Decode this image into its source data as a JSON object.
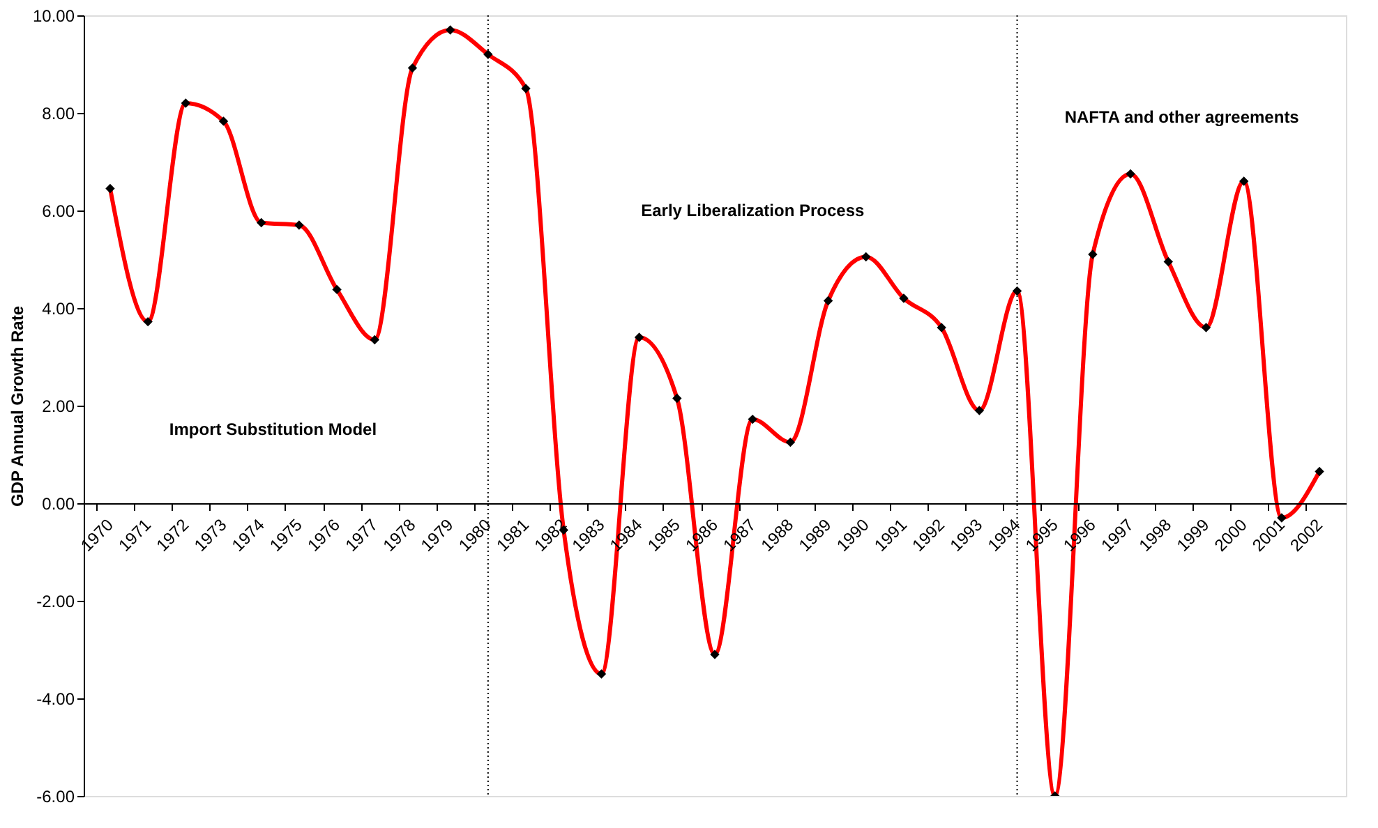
{
  "chart_data": {
    "type": "line",
    "ylabel": "GDP Annual Growth Rate",
    "categories": [
      "1970",
      "1971",
      "1972",
      "1973",
      "1974",
      "1975",
      "1976",
      "1977",
      "1978",
      "1979",
      "1980",
      "1981",
      "1982",
      "1983",
      "1984",
      "1985",
      "1986",
      "1987",
      "1988",
      "1989",
      "1990",
      "1991",
      "1992",
      "1993",
      "1994",
      "1995",
      "1996",
      "1997",
      "1998",
      "1999",
      "2000",
      "2001",
      "2002"
    ],
    "series": [
      {
        "color": "#ff0000",
        "values": [
          6.45,
          3.72,
          8.2,
          7.83,
          5.75,
          5.7,
          4.38,
          3.35,
          8.92,
          9.7,
          9.2,
          8.5,
          -0.55,
          -3.5,
          3.4,
          2.15,
          -3.1,
          1.72,
          1.25,
          4.15,
          5.05,
          4.2,
          3.6,
          1.9,
          4.35,
          -6.0,
          5.1,
          6.75,
          4.95,
          3.6,
          6.6,
          -0.3,
          0.65
        ]
      }
    ],
    "ylim": [
      -6,
      10
    ],
    "yticks": [
      {
        "value": -6,
        "label": "-6.00"
      },
      {
        "value": -4,
        "label": "-4.00"
      },
      {
        "value": -2,
        "label": "-2.00"
      },
      {
        "value": 0,
        "label": "0.00"
      },
      {
        "value": 2,
        "label": "2.00"
      },
      {
        "value": 4,
        "label": "4.00"
      },
      {
        "value": 6,
        "label": "6.00"
      },
      {
        "value": 8,
        "label": "8.00"
      },
      {
        "value": 10,
        "label": "10.00"
      }
    ],
    "ref_lines": [
      {
        "axis": "x",
        "value": "1980",
        "color": "#000000",
        "line_style": "dotted"
      },
      {
        "axis": "x",
        "value": "1994",
        "color": "#000000",
        "line_style": "dotted"
      }
    ],
    "annotations": [
      "Import Substitution Model",
      "Early Liberalization Process",
      "NAFTA and other agreements"
    ],
    "marker": "diamond",
    "line_style": "solid",
    "grid": false
  }
}
